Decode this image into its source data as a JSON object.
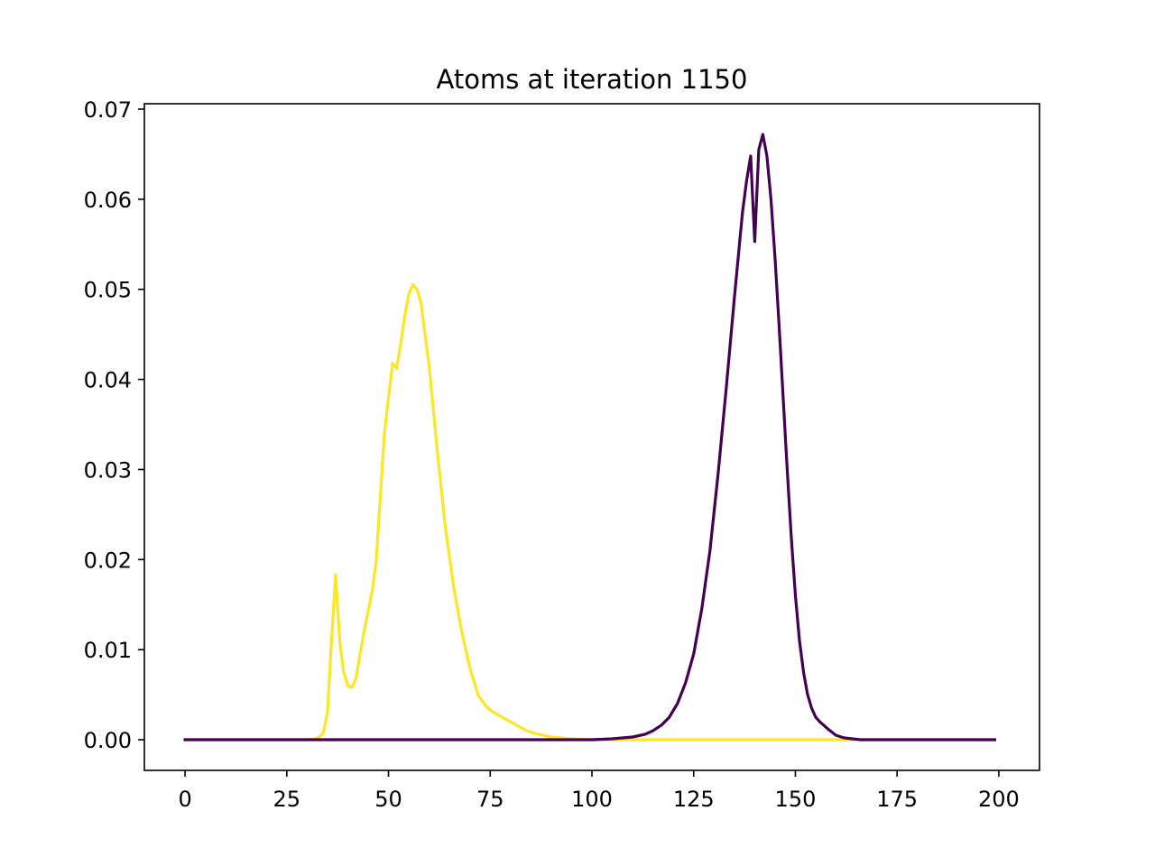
{
  "chart_data": {
    "type": "line",
    "title": "Atoms at iteration 1150",
    "xlabel": "",
    "ylabel": "",
    "xlim": [
      -10,
      210
    ],
    "ylim": [
      -0.0034,
      0.0706
    ],
    "xticks": [
      0,
      25,
      50,
      75,
      100,
      125,
      150,
      175,
      200
    ],
    "xtick_labels": [
      "0",
      "25",
      "50",
      "75",
      "100",
      "125",
      "150",
      "175",
      "200"
    ],
    "yticks": [
      0.0,
      0.01,
      0.02,
      0.03,
      0.04,
      0.05,
      0.06,
      0.07
    ],
    "ytick_labels": [
      "0.00",
      "0.01",
      "0.02",
      "0.03",
      "0.04",
      "0.05",
      "0.06",
      "0.07"
    ],
    "grid": false,
    "series": [
      {
        "color": "#fde725",
        "x": [
          0,
          10,
          20,
          30,
          32,
          33,
          34,
          35,
          36,
          37,
          38,
          39,
          40,
          41,
          42,
          43,
          44,
          46,
          47,
          48,
          49,
          50,
          51,
          52,
          53,
          54,
          55,
          56,
          57,
          58,
          59,
          60,
          62,
          64,
          66,
          68,
          70,
          72,
          74,
          75,
          76,
          78,
          80,
          82,
          84,
          86,
          88,
          90,
          95,
          100,
          105,
          110,
          120,
          150,
          199
        ],
        "y": [
          0.0,
          0.0,
          0.0,
          0.0,
          0.0001,
          0.0003,
          0.0008,
          0.003,
          0.011,
          0.0183,
          0.011,
          0.0075,
          0.006,
          0.0058,
          0.0068,
          0.0095,
          0.012,
          0.0165,
          0.02,
          0.027,
          0.034,
          0.038,
          0.0418,
          0.0412,
          0.044,
          0.047,
          0.0495,
          0.0505,
          0.05,
          0.0485,
          0.045,
          0.0415,
          0.032,
          0.0235,
          0.017,
          0.012,
          0.008,
          0.005,
          0.0037,
          0.0033,
          0.003,
          0.0025,
          0.002,
          0.0015,
          0.001,
          0.0007,
          0.0005,
          0.0003,
          0.0001,
          0.0,
          0.0,
          0.0,
          0.0,
          0.0,
          0.0
        ]
      },
      {
        "color": "#440154",
        "x": [
          0,
          50,
          90,
          100,
          105,
          110,
          113,
          115,
          117,
          119,
          121,
          123,
          125,
          127,
          129,
          131,
          133,
          135,
          137,
          138,
          139,
          140,
          141,
          142,
          143,
          144,
          145,
          146,
          147,
          148,
          149,
          150,
          151,
          152,
          153,
          154,
          155,
          156,
          157,
          158,
          160,
          162,
          164,
          166,
          168,
          170,
          175,
          199
        ],
        "y": [
          0.0,
          0.0,
          0.0,
          0.0,
          0.0001,
          0.0003,
          0.0006,
          0.001,
          0.0016,
          0.0025,
          0.004,
          0.0063,
          0.0095,
          0.0145,
          0.021,
          0.0295,
          0.039,
          0.049,
          0.0585,
          0.062,
          0.0648,
          0.0553,
          0.0655,
          0.0672,
          0.0648,
          0.06,
          0.0535,
          0.046,
          0.038,
          0.03,
          0.0225,
          0.016,
          0.011,
          0.0075,
          0.005,
          0.0035,
          0.0025,
          0.002,
          0.0016,
          0.0012,
          0.0005,
          0.0002,
          0.0001,
          0.0,
          0.0,
          0.0,
          0.0,
          0.0
        ]
      }
    ]
  }
}
